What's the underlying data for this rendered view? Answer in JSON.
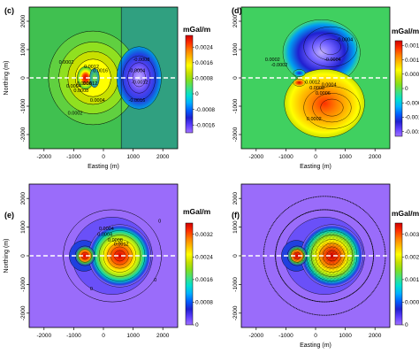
{
  "chart_data": [
    {
      "type": "heatmap",
      "panel_label": "(c)",
      "xlabel": "Easting (m)",
      "ylabel": "Northing (m)",
      "xticks": [
        "-2000",
        "-1000",
        "0",
        "1000",
        "2000"
      ],
      "yticks": [
        "2000",
        "1000",
        "0",
        "-1000",
        "-2000"
      ],
      "xlim": [
        -2500,
        2500
      ],
      "ylim": [
        -2500,
        2500
      ],
      "colorbar_unit": "mGal/m",
      "colorbar_ticks": [
        "0.0024",
        "0.0016",
        "0.0008",
        "0",
        "-0.0008",
        "-0.0016"
      ],
      "colorbar_range": [
        -0.002,
        0.003
      ],
      "contour_labels": [
        "0.0002",
        "0.0004",
        "0.0006",
        "0.0008",
        "0.0012",
        "0.0004",
        "0.0002",
        "-0.0004",
        "-0.0008",
        "-0.0012",
        "0.0012",
        "-0.0016",
        "0.0016"
      ],
      "profile_line_y": 0
    },
    {
      "type": "heatmap",
      "panel_label": "(d)",
      "xlabel": "Easting (m)",
      "ylabel": "",
      "xticks": [
        "-2000",
        "-1000",
        "0",
        "1000",
        "2000"
      ],
      "yticks": [
        "2000",
        "1000",
        "0",
        "-1000",
        "-2000"
      ],
      "xlim": [
        -2500,
        2500
      ],
      "ylim": [
        -2500,
        2500
      ],
      "colorbar_unit": "mGal/m",
      "colorbar_ticks": [
        "0.0018",
        "0.0012",
        "0.0006",
        "0",
        "-0.0006",
        "-0.0012",
        "-0.0018"
      ],
      "colorbar_range": [
        -0.002,
        0.002
      ],
      "contour_labels": [
        "0.0002",
        "-0.0004",
        "-0.0002",
        "-0.0004",
        "0.0004",
        "0.0002",
        "0.0006",
        "0.0008",
        "0.0012"
      ],
      "profile_line_y": 0
    },
    {
      "type": "heatmap",
      "panel_label": "(e)",
      "xlabel": "",
      "ylabel": "Northing (m)",
      "xticks": [
        "-2000",
        "-1000",
        "0",
        "1000",
        "2000"
      ],
      "yticks": [
        "2000",
        "1000",
        "0",
        "-1000",
        "-2000"
      ],
      "xlim": [
        -2500,
        2500
      ],
      "ylim": [
        -2500,
        2500
      ],
      "colorbar_unit": "mGal/m",
      "colorbar_ticks": [
        "0.0032",
        "0.0024",
        "0.0016",
        "0.0008",
        "0"
      ],
      "colorbar_range": [
        0,
        0.0036
      ],
      "contour_labels": [
        "0",
        "0.0004",
        "0.0004",
        "0.0008",
        "0.0012",
        "0",
        "0"
      ],
      "profile_line_y": 0
    },
    {
      "type": "heatmap",
      "panel_label": "(f)",
      "xlabel": "Easting (m)",
      "ylabel": "",
      "xticks": [
        "-2000",
        "-1000",
        "0",
        "1000",
        "2000"
      ],
      "yticks": [
        "2000",
        "1000",
        "0",
        "-1000",
        "-2000"
      ],
      "xlim": [
        -2500,
        2500
      ],
      "ylim": [
        -2500,
        2500
      ],
      "colorbar_unit": "mGal/m",
      "colorbar_ticks": [
        "0.0032",
        "0.0024",
        "0.0016",
        "0.0008",
        "0"
      ],
      "colorbar_range": [
        0,
        0.0036
      ],
      "contour_labels": [],
      "profile_line_y": 0
    }
  ],
  "colormap": [
    "#a070ff",
    "#6040ff",
    "#2020d0",
    "#0060ff",
    "#00b0ff",
    "#00e0d0",
    "#40e080",
    "#80e020",
    "#c8e000",
    "#ffff00",
    "#ffc000",
    "#ff8000",
    "#ff3000",
    "#d00000"
  ]
}
